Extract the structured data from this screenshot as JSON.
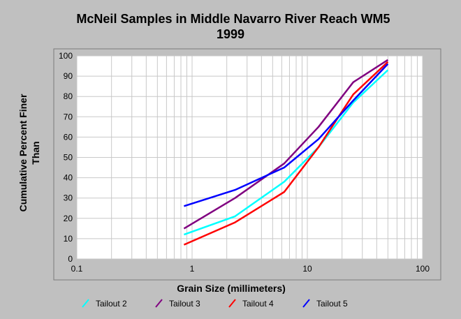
{
  "chart_data": {
    "type": "line",
    "title": "McNeil Samples in Middle Navarro River Reach WM5",
    "subtitle": "1999",
    "xlabel": "Grain Size (millimeters)",
    "ylabel_line1": "Cumulative Percent Finer",
    "ylabel_line2": "Than",
    "x_scale": "log",
    "xlim": [
      0.1,
      100
    ],
    "ylim": [
      0,
      100
    ],
    "x_ticks": [
      "0.1",
      "1",
      "10",
      "100"
    ],
    "y_ticks": [
      "0",
      "10",
      "20",
      "30",
      "40",
      "50",
      "60",
      "70",
      "80",
      "90",
      "100"
    ],
    "grid": true,
    "legend_position": "bottom",
    "series": [
      {
        "name": "Tailout 2",
        "color": "#00ffff",
        "x": [
          0.85,
          2.36,
          6.3,
          12.5,
          25,
          50
        ],
        "y": [
          12,
          21,
          38,
          55,
          77,
          93
        ]
      },
      {
        "name": "Tailout 3",
        "color": "#800080",
        "x": [
          0.85,
          2.36,
          6.3,
          12.5,
          25,
          50
        ],
        "y": [
          15,
          30,
          47,
          65,
          87,
          98
        ]
      },
      {
        "name": "Tailout 4",
        "color": "#ff0000",
        "x": [
          0.85,
          2.36,
          6.3,
          12.5,
          25,
          50
        ],
        "y": [
          7,
          18,
          33,
          55,
          81,
          97
        ]
      },
      {
        "name": "Tailout 5",
        "color": "#0000ff",
        "x": [
          0.85,
          2.36,
          6.3,
          12.5,
          25,
          50
        ],
        "y": [
          26,
          34,
          45,
          59,
          78,
          96
        ]
      }
    ]
  }
}
